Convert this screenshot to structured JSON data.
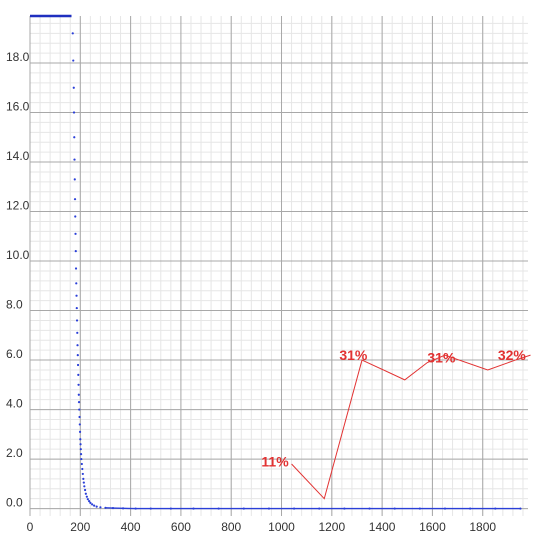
{
  "chart_data": {
    "type": "scatter",
    "xlim": [
      0,
      1980
    ],
    "ylim": [
      -0.3,
      19.9
    ],
    "grid": true,
    "x_ticks": [
      {
        "value": 0,
        "label": "0"
      },
      {
        "value": 200,
        "label": "200"
      },
      {
        "value": 400,
        "label": "400"
      },
      {
        "value": 600,
        "label": "600"
      },
      {
        "value": 800,
        "label": "800"
      },
      {
        "value": 1000,
        "label": "1000"
      },
      {
        "value": 1200,
        "label": "1200"
      },
      {
        "value": 1400,
        "label": "1400"
      },
      {
        "value": 1600,
        "label": "1600"
      },
      {
        "value": 1800,
        "label": "1800"
      }
    ],
    "y_ticks": [
      {
        "value": 0,
        "label": "0.0"
      },
      {
        "value": 2,
        "label": "2.0"
      },
      {
        "value": 4,
        "label": "4.0"
      },
      {
        "value": 6,
        "label": "6.0"
      },
      {
        "value": 8,
        "label": "8.0"
      },
      {
        "value": 10,
        "label": "10.0"
      },
      {
        "value": 12,
        "label": "12.0"
      },
      {
        "value": 14,
        "label": "14.0"
      },
      {
        "value": 16,
        "label": "16.0"
      },
      {
        "value": 18,
        "label": "18.0"
      }
    ],
    "top_segment": {
      "x": [
        0,
        165
      ],
      "y": 19.9
    },
    "series": [
      {
        "color": "#2a3fd8",
        "points": [
          [
            170,
            19.2
          ],
          [
            172,
            18.1
          ],
          [
            174,
            17.0
          ],
          [
            175,
            16.0
          ],
          [
            176,
            15.0
          ],
          [
            177,
            14.1
          ],
          [
            178,
            13.3
          ],
          [
            179,
            12.5
          ],
          [
            180,
            11.8
          ],
          [
            181,
            11.1
          ],
          [
            182,
            10.4
          ],
          [
            183,
            9.7
          ],
          [
            184,
            9.1
          ],
          [
            185,
            8.6
          ],
          [
            186,
            8.1
          ],
          [
            187,
            7.6
          ],
          [
            188,
            7.1
          ],
          [
            189,
            6.6
          ],
          [
            190,
            6.2
          ],
          [
            191,
            5.8
          ],
          [
            192,
            5.4
          ],
          [
            193,
            5.0
          ],
          [
            194,
            4.6
          ],
          [
            195,
            4.3
          ],
          [
            196,
            4.0
          ],
          [
            197,
            3.7
          ],
          [
            198,
            3.4
          ],
          [
            199,
            3.1
          ],
          [
            200,
            2.8
          ],
          [
            201,
            2.6
          ],
          [
            202,
            2.4
          ],
          [
            203,
            2.2
          ],
          [
            204,
            2.0
          ],
          [
            206,
            1.8
          ],
          [
            208,
            1.6
          ],
          [
            210,
            1.4
          ],
          [
            212,
            1.2
          ],
          [
            214,
            1.05
          ],
          [
            216,
            0.9
          ],
          [
            219,
            0.75
          ],
          [
            222,
            0.6
          ],
          [
            226,
            0.48
          ],
          [
            230,
            0.38
          ],
          [
            235,
            0.3
          ],
          [
            240,
            0.23
          ],
          [
            247,
            0.17
          ],
          [
            255,
            0.12
          ],
          [
            265,
            0.08
          ],
          [
            280,
            0.05
          ],
          [
            300,
            0.03
          ],
          [
            330,
            0.02
          ],
          [
            370,
            0.01
          ],
          [
            420,
            0.0
          ],
          [
            480,
            0.0
          ],
          [
            560,
            0.0
          ],
          [
            650,
            0.0
          ],
          [
            750,
            0.0
          ],
          [
            850,
            0.0
          ],
          [
            950,
            0.0
          ],
          [
            1050,
            0.0
          ],
          [
            1150,
            0.0
          ],
          [
            1250,
            0.0
          ],
          [
            1350,
            0.0
          ],
          [
            1450,
            0.0
          ],
          [
            1550,
            0.0
          ],
          [
            1650,
            0.0
          ],
          [
            1750,
            0.0
          ],
          [
            1850,
            0.0
          ],
          [
            1950,
            0.0
          ]
        ]
      }
    ],
    "annotation_line": {
      "color": "#e23232",
      "points": [
        [
          1040,
          1.8
        ],
        [
          1170,
          0.4
        ],
        [
          1320,
          6.0
        ],
        [
          1490,
          5.2
        ],
        [
          1580,
          5.9
        ],
        [
          1650,
          6.2
        ],
        [
          1820,
          5.6
        ],
        [
          1930,
          6.0
        ],
        [
          1990,
          6.2
        ]
      ]
    },
    "annotations": [
      {
        "text": "11%",
        "x": 920,
        "y": 1.7
      },
      {
        "text": "31%",
        "x": 1230,
        "y": 6.0
      },
      {
        "text": "31%",
        "x": 1580,
        "y": 5.9
      },
      {
        "text": "32%",
        "x": 1860,
        "y": 6.0
      }
    ]
  }
}
